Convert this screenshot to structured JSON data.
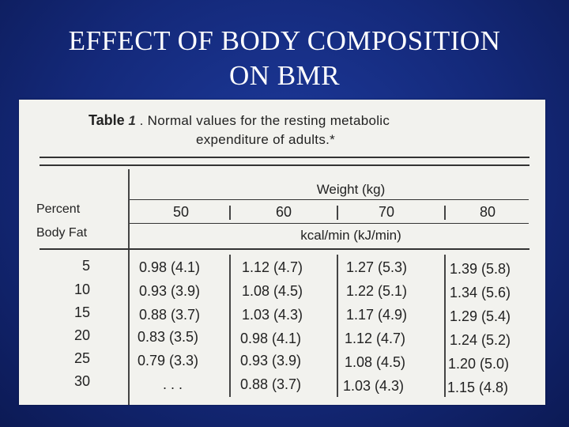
{
  "slide": {
    "title_line1": "EFFECT OF BODY COMPOSITION",
    "title_line2": "ON BMR"
  },
  "table": {
    "table_word": "Table",
    "table_number": "1",
    "caption_line1": ". Normal values for the resting metabolic",
    "caption_line2": "expenditure of adults.*",
    "weight_header": "Weight (kg)",
    "percent_label": "Percent",
    "body_fat_label": "Body Fat",
    "weights": [
      "50",
      "60",
      "70",
      "80"
    ],
    "unit_label": "kcal/min (kJ/min)",
    "rows": [
      {
        "fat": "5",
        "cells": [
          "0.98 (4.1)",
          "1.12 (4.7)",
          "1.27 (5.3)",
          "1.39 (5.8)"
        ]
      },
      {
        "fat": "10",
        "cells": [
          "0.93 (3.9)",
          "1.08 (4.5)",
          "1.22 (5.1)",
          "1.34 (5.6)"
        ]
      },
      {
        "fat": "15",
        "cells": [
          "0.88 (3.7)",
          "1.03 (4.3)",
          "1.17 (4.9)",
          "1.29 (5.4)"
        ]
      },
      {
        "fat": "20",
        "cells": [
          "0.83 (3.5)",
          "0.98 (4.1)",
          "1.12 (4.7)",
          "1.24 (5.2)"
        ]
      },
      {
        "fat": "25",
        "cells": [
          "0.79 (3.3)",
          "0.93 (3.9)",
          "1.08 (4.5)",
          "1.20 (5.0)"
        ]
      },
      {
        "fat": "30",
        "cells": ". . .|0.88 (3.7)|1.03 (4.3)|1.15 (4.8)"
      }
    ]
  }
}
